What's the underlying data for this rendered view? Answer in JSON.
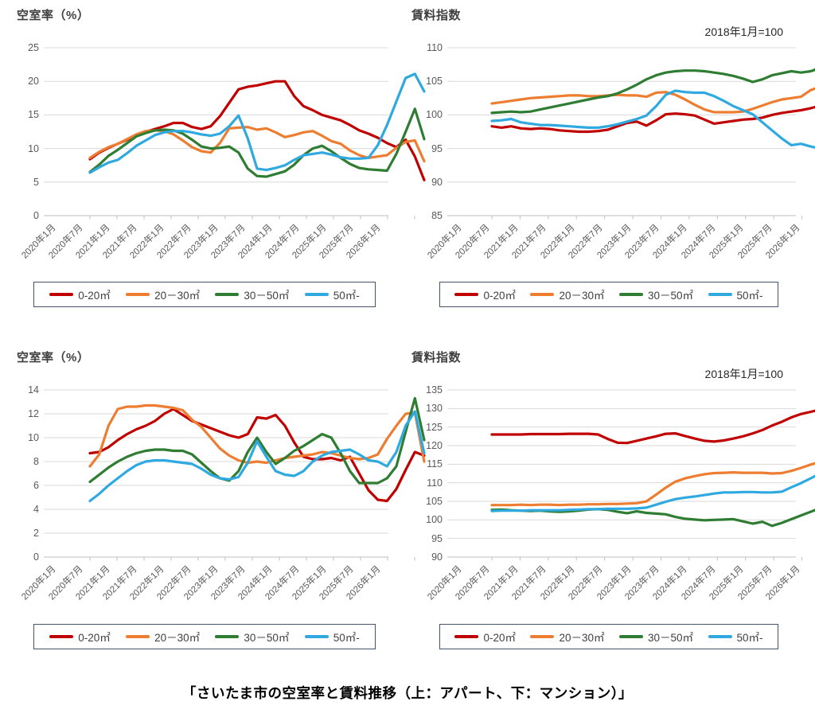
{
  "page": {
    "caption": "「さいたま市の空室率と賃料推移（上：アパート、下：マンション）」",
    "background": "#ffffff"
  },
  "colors": {
    "red": "#c00000",
    "orange": "#ed7d31",
    "green": "#2e7d32",
    "blue": "#2fa9df",
    "grid": "#d9d9d9",
    "axis": "#bfbfbf",
    "tick_text": "#595959",
    "title_text": "#3f3f3f",
    "legend_border": "#44546a"
  },
  "x_axis": {
    "tick_labels": [
      "2020年1月",
      "2020年7月",
      "2021年1月",
      "2021年7月",
      "2022年1月",
      "2022年7月",
      "2023年1月",
      "2023年7月",
      "2024年1月",
      "2024年7月",
      "2025年1月",
      "2025年7月",
      "2026年1月"
    ],
    "points": [
      "2020-01",
      "2020-03",
      "2020-05",
      "2020-07",
      "2020-09",
      "2020-11",
      "2021-01",
      "2021-03",
      "2021-05",
      "2021-07",
      "2021-09",
      "2021-11",
      "2022-01",
      "2022-03",
      "2022-05",
      "2022-07",
      "2022-09",
      "2022-11",
      "2023-01",
      "2023-03",
      "2023-05",
      "2023-07",
      "2023-09",
      "2023-11",
      "2024-01",
      "2024-03",
      "2024-05",
      "2024-07",
      "2024-09",
      "2024-11",
      "2025-01",
      "2025-03",
      "2025-05",
      "2025-07",
      "2025-09",
      "2025-11",
      "2026-01"
    ]
  },
  "chart_data": [
    {
      "id": "apartment-vacancy-rate",
      "position": "top-left",
      "property_type": "アパート",
      "type": "line",
      "title": "空室率（%）",
      "subtitle": "",
      "ylabel": "空室率(%)",
      "ylim": [
        0,
        25
      ],
      "yticks": [
        0,
        5,
        10,
        15,
        20,
        25
      ],
      "grid": true,
      "legend_position": "bottom",
      "series": [
        {
          "name": "0-20㎡",
          "color": "#c00000",
          "values": [
            8.4,
            9.4,
            10.1,
            10.7,
            11.3,
            12.0,
            12.5,
            12.9,
            13.3,
            13.8,
            13.8,
            13.2,
            12.9,
            13.3,
            14.8,
            16.8,
            18.8,
            19.2,
            19.4,
            19.7,
            20.0,
            20.0,
            17.8,
            16.3,
            15.7,
            15.0,
            14.6,
            14.2,
            13.5,
            12.7,
            12.2,
            11.6,
            10.8,
            10.2,
            11.3,
            8.8,
            5.3
          ]
        },
        {
          "name": "20－30㎡",
          "color": "#ed7d31",
          "values": [
            8.6,
            9.5,
            10.2,
            10.7,
            11.4,
            12.1,
            12.6,
            12.7,
            12.6,
            12.1,
            11.2,
            10.2,
            9.6,
            9.4,
            10.8,
            13.0,
            13.1,
            13.2,
            12.8,
            13.0,
            12.4,
            11.7,
            12.0,
            12.4,
            12.6,
            11.9,
            11.1,
            10.7,
            9.7,
            9.0,
            8.6,
            8.8,
            9.0,
            10.1,
            11.0,
            11.2,
            8.1
          ]
        },
        {
          "name": "30－50㎡",
          "color": "#2e7d32",
          "values": [
            6.5,
            7.6,
            8.9,
            9.8,
            10.8,
            11.8,
            12.3,
            12.7,
            12.8,
            12.7,
            12.2,
            11.3,
            10.3,
            10.0,
            10.1,
            10.3,
            9.4,
            7.0,
            5.9,
            5.8,
            6.2,
            6.6,
            7.6,
            9.0,
            10.0,
            10.4,
            9.6,
            8.6,
            7.7,
            7.1,
            6.9,
            6.8,
            6.7,
            9.2,
            12.5,
            15.9,
            11.4
          ]
        },
        {
          "name": "50㎡-",
          "color": "#2fa9df",
          "values": [
            6.4,
            7.2,
            7.9,
            8.3,
            9.3,
            10.4,
            11.2,
            12.0,
            12.4,
            12.6,
            12.6,
            12.4,
            12.1,
            11.9,
            12.2,
            13.3,
            14.9,
            11.5,
            7.0,
            6.8,
            7.1,
            7.5,
            8.3,
            9.0,
            9.2,
            9.4,
            9.1,
            8.7,
            8.5,
            8.5,
            8.6,
            10.5,
            13.5,
            17.0,
            20.5,
            21.1,
            18.5
          ]
        }
      ]
    },
    {
      "id": "apartment-rent-index",
      "position": "top-right",
      "property_type": "アパート",
      "type": "line",
      "title": "賃料指数",
      "subtitle": "2018年1月=100",
      "ylabel": "賃料指数",
      "ylim": [
        85,
        110
      ],
      "yticks": [
        85,
        90,
        95,
        100,
        105,
        110
      ],
      "grid": true,
      "legend_position": "bottom",
      "series": [
        {
          "name": "0-20㎡",
          "color": "#c00000",
          "values": [
            98.3,
            98.1,
            98.3,
            98.0,
            97.9,
            98.0,
            97.9,
            97.7,
            97.6,
            97.5,
            97.5,
            97.6,
            97.8,
            98.3,
            98.8,
            99.0,
            98.4,
            99.2,
            100.1,
            100.2,
            100.1,
            99.9,
            99.3,
            98.7,
            98.9,
            99.1,
            99.3,
            99.4,
            99.6,
            100.0,
            100.3,
            100.5,
            100.7,
            101.0,
            101.4,
            101.7,
            101.9
          ]
        },
        {
          "name": "20－30㎡",
          "color": "#ed7d31",
          "values": [
            101.7,
            101.9,
            102.1,
            102.3,
            102.5,
            102.6,
            102.7,
            102.8,
            102.9,
            102.9,
            102.8,
            102.8,
            102.9,
            103.0,
            102.9,
            102.9,
            102.7,
            103.3,
            103.4,
            103.0,
            102.3,
            101.5,
            100.8,
            100.4,
            100.4,
            100.4,
            100.5,
            100.9,
            101.4,
            101.9,
            102.3,
            102.5,
            102.7,
            103.7,
            104.2,
            104.3,
            103.6
          ]
        },
        {
          "name": "30－50㎡",
          "color": "#2e7d32",
          "values": [
            100.3,
            100.4,
            100.5,
            100.4,
            100.5,
            100.8,
            101.1,
            101.4,
            101.7,
            102.0,
            102.3,
            102.6,
            102.8,
            103.2,
            103.8,
            104.5,
            105.3,
            105.9,
            106.3,
            106.5,
            106.6,
            106.6,
            106.5,
            106.3,
            106.1,
            105.8,
            105.4,
            104.9,
            105.3,
            105.9,
            106.2,
            106.5,
            106.3,
            106.5,
            107.0,
            107.6,
            108.3
          ]
        },
        {
          "name": "50㎡-",
          "color": "#2fa9df",
          "values": [
            99.1,
            99.2,
            99.4,
            98.9,
            98.7,
            98.5,
            98.5,
            98.4,
            98.3,
            98.2,
            98.1,
            98.1,
            98.3,
            98.6,
            99.0,
            99.4,
            99.9,
            101.3,
            103.0,
            103.6,
            103.4,
            103.3,
            103.3,
            102.8,
            102.1,
            101.3,
            100.7,
            100.1,
            98.9,
            97.7,
            96.5,
            95.5,
            95.7,
            95.3,
            95.0,
            94.3,
            93.6
          ]
        }
      ]
    },
    {
      "id": "mansion-vacancy-rate",
      "position": "bottom-left",
      "property_type": "マンション",
      "type": "line",
      "title": "空室率（%）",
      "subtitle": "",
      "ylabel": "空室率(%)",
      "ylim": [
        0,
        14
      ],
      "yticks": [
        0,
        2,
        4,
        6,
        8,
        10,
        12,
        14
      ],
      "grid": true,
      "legend_position": "bottom",
      "series": [
        {
          "name": "0-20㎡",
          "color": "#c00000",
          "values": [
            8.7,
            8.8,
            9.2,
            9.8,
            10.3,
            10.7,
            11.0,
            11.4,
            12.0,
            12.4,
            11.9,
            11.4,
            11.1,
            10.8,
            10.5,
            10.2,
            10.0,
            10.3,
            11.7,
            11.6,
            11.9,
            11.0,
            9.6,
            8.4,
            8.2,
            8.2,
            8.3,
            8.1,
            8.4,
            7.0,
            5.6,
            4.8,
            4.7,
            5.7,
            7.3,
            8.8,
            8.5
          ]
        },
        {
          "name": "20－30㎡",
          "color": "#ed7d31",
          "values": [
            7.6,
            8.6,
            11.0,
            12.4,
            12.6,
            12.6,
            12.7,
            12.7,
            12.6,
            12.5,
            12.3,
            11.5,
            10.9,
            10.0,
            9.1,
            8.5,
            8.1,
            7.9,
            8.0,
            7.9,
            8.1,
            8.3,
            8.4,
            8.5,
            8.6,
            8.8,
            8.7,
            8.5,
            8.3,
            8.2,
            8.3,
            8.6,
            9.9,
            11.0,
            12.0,
            12.1,
            8.0
          ]
        },
        {
          "name": "30－50㎡",
          "color": "#2e7d32",
          "values": [
            6.3,
            6.9,
            7.5,
            8.0,
            8.4,
            8.7,
            8.9,
            9.0,
            9.0,
            8.9,
            8.9,
            8.6,
            7.9,
            7.2,
            6.6,
            6.4,
            7.2,
            8.8,
            10.0,
            8.8,
            7.8,
            8.3,
            8.9,
            9.3,
            9.8,
            10.3,
            10.0,
            8.7,
            7.2,
            6.2,
            6.2,
            6.2,
            6.6,
            7.6,
            10.5,
            13.3,
            9.8
          ]
        },
        {
          "name": "50㎡-",
          "color": "#2fa9df",
          "values": [
            4.7,
            5.3,
            6.0,
            6.6,
            7.2,
            7.7,
            8.0,
            8.1,
            8.1,
            8.0,
            7.9,
            7.8,
            7.4,
            6.9,
            6.6,
            6.5,
            6.7,
            7.9,
            9.7,
            8.4,
            7.2,
            6.9,
            6.8,
            7.2,
            8.0,
            8.5,
            8.8,
            8.9,
            9.0,
            8.6,
            8.1,
            8.0,
            7.6,
            8.8,
            11.0,
            12.2,
            8.7
          ]
        }
      ]
    },
    {
      "id": "mansion-rent-index",
      "position": "bottom-right",
      "property_type": "マンション",
      "type": "line",
      "title": "賃料指数",
      "subtitle": "2018年1月=100",
      "ylabel": "賃料指数",
      "ylim": [
        90,
        135
      ],
      "yticks": [
        90,
        95,
        100,
        105,
        110,
        115,
        120,
        125,
        130,
        135
      ],
      "grid": true,
      "legend_position": "bottom",
      "series": [
        {
          "name": "0-20㎡",
          "color": "#c00000",
          "values": [
            123.0,
            123.0,
            123.0,
            123.0,
            123.1,
            123.1,
            123.1,
            123.1,
            123.2,
            123.2,
            123.2,
            123.0,
            121.8,
            120.8,
            120.7,
            121.3,
            121.9,
            122.5,
            123.2,
            123.3,
            122.6,
            121.9,
            121.3,
            121.1,
            121.4,
            121.9,
            122.5,
            123.3,
            124.2,
            125.4,
            126.4,
            127.6,
            128.5,
            129.1,
            129.7,
            130.2,
            130.4
          ]
        },
        {
          "name": "20－30㎡",
          "color": "#ed7d31",
          "values": [
            104.0,
            104.0,
            104.0,
            104.1,
            104.0,
            104.1,
            104.1,
            104.0,
            104.1,
            104.1,
            104.2,
            104.2,
            104.3,
            104.3,
            104.4,
            104.5,
            105.0,
            106.8,
            108.7,
            110.3,
            111.2,
            111.8,
            112.3,
            112.6,
            112.7,
            112.8,
            112.7,
            112.7,
            112.7,
            112.5,
            112.6,
            113.2,
            114.0,
            114.9,
            115.6,
            116.1,
            116.5
          ]
        },
        {
          "name": "30－50㎡",
          "color": "#2e7d32",
          "values": [
            102.7,
            102.8,
            102.6,
            102.5,
            102.4,
            102.5,
            102.3,
            102.2,
            102.3,
            102.5,
            102.8,
            102.9,
            102.7,
            102.2,
            101.8,
            102.3,
            101.9,
            101.7,
            101.5,
            100.8,
            100.3,
            100.1,
            99.9,
            100.0,
            100.1,
            100.2,
            99.6,
            99.0,
            99.5,
            98.4,
            99.2,
            100.2,
            101.2,
            102.2,
            103.2,
            103.9,
            104.2
          ]
        },
        {
          "name": "50㎡-",
          "color": "#2fa9df",
          "values": [
            102.4,
            102.5,
            102.5,
            102.5,
            102.6,
            102.6,
            102.6,
            102.6,
            102.7,
            102.8,
            102.9,
            102.9,
            103.0,
            103.0,
            103.0,
            103.1,
            103.3,
            104.1,
            104.9,
            105.6,
            106.0,
            106.3,
            106.7,
            107.1,
            107.4,
            107.4,
            107.5,
            107.5,
            107.4,
            107.4,
            107.6,
            108.8,
            109.9,
            111.2,
            112.6,
            113.7,
            114.3
          ]
        }
      ]
    }
  ]
}
